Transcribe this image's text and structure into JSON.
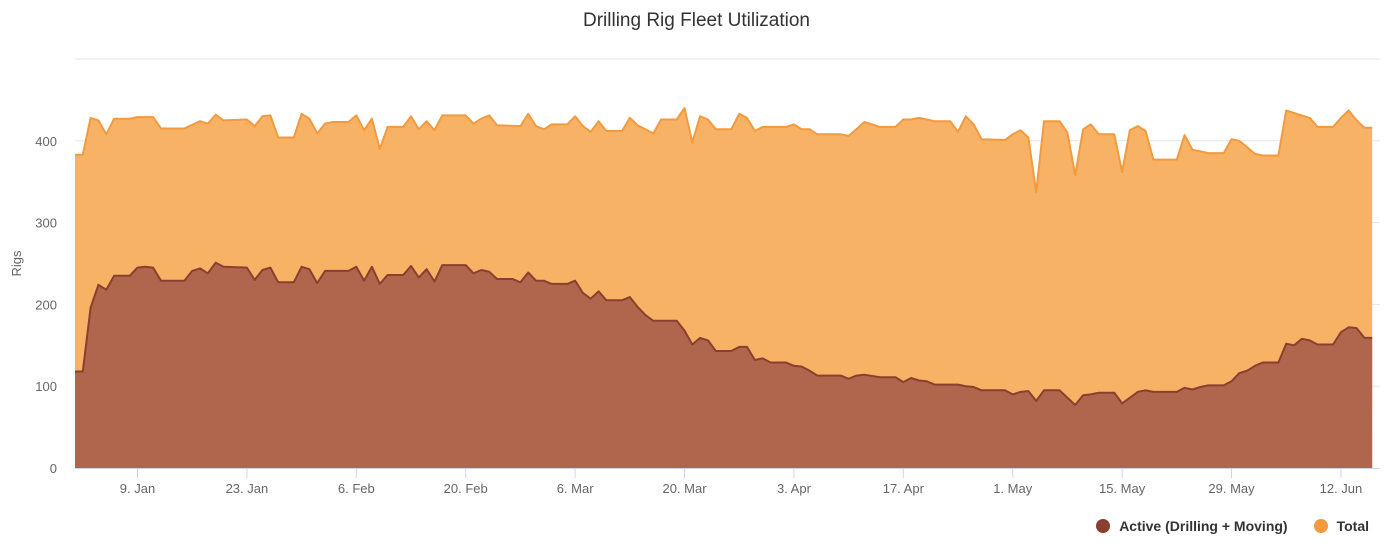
{
  "chart_data": {
    "type": "area",
    "title": "Drilling Rig Fleet Utilization",
    "ylabel": "Rigs",
    "xlabel": "",
    "ylim": [
      0,
      500
    ],
    "yticks": [
      0,
      100,
      200,
      300,
      400
    ],
    "x_start": "2017-01-02",
    "x_end": "2017-06-17",
    "xticks": [
      {
        "date": "2017-01-09",
        "label": "9. Jan"
      },
      {
        "date": "2017-01-23",
        "label": "23. Jan"
      },
      {
        "date": "2017-02-06",
        "label": "6. Feb"
      },
      {
        "date": "2017-02-20",
        "label": "20. Feb"
      },
      {
        "date": "2017-03-06",
        "label": "6. Mar"
      },
      {
        "date": "2017-03-20",
        "label": "20. Mar"
      },
      {
        "date": "2017-04-03",
        "label": "3. Apr"
      },
      {
        "date": "2017-04-17",
        "label": "17. Apr"
      },
      {
        "date": "2017-05-01",
        "label": "1. May"
      },
      {
        "date": "2017-05-15",
        "label": "15. May"
      },
      {
        "date": "2017-05-29",
        "label": "29. May"
      },
      {
        "date": "2017-06-12",
        "label": "12. Jun"
      }
    ],
    "grid": true,
    "legend_position": "bottom-right",
    "series": [
      {
        "name": "Total",
        "color": "#f29a3e",
        "fill": "#f7b266",
        "points": [
          [
            "2017-01-01",
            383
          ],
          [
            "2017-01-02",
            383
          ],
          [
            "2017-01-03",
            428
          ],
          [
            "2017-01-04",
            425
          ],
          [
            "2017-01-05",
            408
          ],
          [
            "2017-01-06",
            427
          ],
          [
            "2017-01-08",
            427
          ],
          [
            "2017-01-09",
            429
          ],
          [
            "2017-01-11",
            429
          ],
          [
            "2017-01-12",
            415
          ],
          [
            "2017-01-15",
            415
          ],
          [
            "2017-01-17",
            424
          ],
          [
            "2017-01-18",
            421
          ],
          [
            "2017-01-19",
            432
          ],
          [
            "2017-01-20",
            425
          ],
          [
            "2017-01-23",
            426
          ],
          [
            "2017-01-24",
            418
          ],
          [
            "2017-01-25",
            430
          ],
          [
            "2017-01-26",
            431
          ],
          [
            "2017-01-27",
            404
          ],
          [
            "2017-01-29",
            404
          ],
          [
            "2017-01-30",
            433
          ],
          [
            "2017-01-31",
            427
          ],
          [
            "2017-02-01",
            409
          ],
          [
            "2017-02-02",
            421
          ],
          [
            "2017-02-03",
            423
          ],
          [
            "2017-02-05",
            423
          ],
          [
            "2017-02-06",
            431
          ],
          [
            "2017-02-07",
            413
          ],
          [
            "2017-02-08",
            427
          ],
          [
            "2017-02-09",
            390
          ],
          [
            "2017-02-10",
            417
          ],
          [
            "2017-02-12",
            417
          ],
          [
            "2017-02-13",
            430
          ],
          [
            "2017-02-14",
            414
          ],
          [
            "2017-02-15",
            424
          ],
          [
            "2017-02-16",
            413
          ],
          [
            "2017-02-17",
            431
          ],
          [
            "2017-02-20",
            431
          ],
          [
            "2017-02-21",
            421
          ],
          [
            "2017-02-22",
            427
          ],
          [
            "2017-02-23",
            431
          ],
          [
            "2017-02-24",
            419
          ],
          [
            "2017-02-27",
            418
          ],
          [
            "2017-02-28",
            433
          ],
          [
            "2017-03-01",
            418
          ],
          [
            "2017-03-02",
            414
          ],
          [
            "2017-03-03",
            420
          ],
          [
            "2017-03-05",
            420
          ],
          [
            "2017-03-06",
            430
          ],
          [
            "2017-03-07",
            418
          ],
          [
            "2017-03-08",
            411
          ],
          [
            "2017-03-09",
            424
          ],
          [
            "2017-03-10",
            412
          ],
          [
            "2017-03-12",
            412
          ],
          [
            "2017-03-13",
            428
          ],
          [
            "2017-03-14",
            419
          ],
          [
            "2017-03-16",
            409
          ],
          [
            "2017-03-17",
            426
          ],
          [
            "2017-03-19",
            426
          ],
          [
            "2017-03-20",
            440
          ],
          [
            "2017-03-21",
            398
          ],
          [
            "2017-03-22",
            430
          ],
          [
            "2017-03-23",
            426
          ],
          [
            "2017-03-24",
            414
          ],
          [
            "2017-03-26",
            414
          ],
          [
            "2017-03-27",
            433
          ],
          [
            "2017-03-28",
            428
          ],
          [
            "2017-03-29",
            412
          ],
          [
            "2017-03-30",
            417
          ],
          [
            "2017-04-02",
            417
          ],
          [
            "2017-04-03",
            420
          ],
          [
            "2017-04-04",
            414
          ],
          [
            "2017-04-05",
            414
          ],
          [
            "2017-04-06",
            408
          ],
          [
            "2017-04-09",
            408
          ],
          [
            "2017-04-10",
            406
          ],
          [
            "2017-04-11",
            414
          ],
          [
            "2017-04-12",
            423
          ],
          [
            "2017-04-13",
            420
          ],
          [
            "2017-04-14",
            417
          ],
          [
            "2017-04-16",
            417
          ],
          [
            "2017-04-17",
            426
          ],
          [
            "2017-04-18",
            426
          ],
          [
            "2017-04-19",
            428
          ],
          [
            "2017-04-20",
            426
          ],
          [
            "2017-04-21",
            424
          ],
          [
            "2017-04-23",
            424
          ],
          [
            "2017-04-24",
            411
          ],
          [
            "2017-04-25",
            430
          ],
          [
            "2017-04-26",
            420
          ],
          [
            "2017-04-27",
            402
          ],
          [
            "2017-04-30",
            401
          ],
          [
            "2017-05-01",
            408
          ],
          [
            "2017-05-02",
            413
          ],
          [
            "2017-05-03",
            404
          ],
          [
            "2017-05-04",
            337
          ],
          [
            "2017-05-05",
            424
          ],
          [
            "2017-05-07",
            424
          ],
          [
            "2017-05-08",
            410
          ],
          [
            "2017-05-09",
            358
          ],
          [
            "2017-05-10",
            414
          ],
          [
            "2017-05-11",
            420
          ],
          [
            "2017-05-12",
            408
          ],
          [
            "2017-05-14",
            408
          ],
          [
            "2017-05-15",
            362
          ],
          [
            "2017-05-16",
            413
          ],
          [
            "2017-05-17",
            418
          ],
          [
            "2017-05-18",
            412
          ],
          [
            "2017-05-19",
            377
          ],
          [
            "2017-05-22",
            377
          ],
          [
            "2017-05-23",
            407
          ],
          [
            "2017-05-24",
            389
          ],
          [
            "2017-05-25",
            387
          ],
          [
            "2017-05-26",
            385
          ],
          [
            "2017-05-28",
            385
          ],
          [
            "2017-05-29",
            402
          ],
          [
            "2017-05-30",
            400
          ],
          [
            "2017-05-31",
            392
          ],
          [
            "2017-06-01",
            384
          ],
          [
            "2017-06-02",
            382
          ],
          [
            "2017-06-04",
            382
          ],
          [
            "2017-06-05",
            437
          ],
          [
            "2017-06-06",
            434
          ],
          [
            "2017-06-07",
            431
          ],
          [
            "2017-06-08",
            428
          ],
          [
            "2017-06-09",
            417
          ],
          [
            "2017-06-11",
            417
          ],
          [
            "2017-06-12",
            428
          ],
          [
            "2017-06-13",
            437
          ],
          [
            "2017-06-14",
            425
          ],
          [
            "2017-06-15",
            416
          ],
          [
            "2017-06-16",
            416
          ]
        ]
      },
      {
        "name": "Active (Drilling + Moving)",
        "color": "#8b3f2f",
        "fill": "#b0664d",
        "points": [
          [
            "2017-01-01",
            118
          ],
          [
            "2017-01-02",
            118
          ],
          [
            "2017-01-03",
            196
          ],
          [
            "2017-01-04",
            224
          ],
          [
            "2017-01-05",
            218
          ],
          [
            "2017-01-06",
            235
          ],
          [
            "2017-01-08",
            235
          ],
          [
            "2017-01-09",
            245
          ],
          [
            "2017-01-10",
            246
          ],
          [
            "2017-01-11",
            245
          ],
          [
            "2017-01-12",
            229
          ],
          [
            "2017-01-15",
            229
          ],
          [
            "2017-01-16",
            241
          ],
          [
            "2017-01-17",
            244
          ],
          [
            "2017-01-18",
            238
          ],
          [
            "2017-01-19",
            251
          ],
          [
            "2017-01-20",
            246
          ],
          [
            "2017-01-23",
            245
          ],
          [
            "2017-01-24",
            230
          ],
          [
            "2017-01-25",
            242
          ],
          [
            "2017-01-26",
            245
          ],
          [
            "2017-01-27",
            227
          ],
          [
            "2017-01-29",
            227
          ],
          [
            "2017-01-30",
            246
          ],
          [
            "2017-01-31",
            243
          ],
          [
            "2017-02-01",
            226
          ],
          [
            "2017-02-02",
            241
          ],
          [
            "2017-02-05",
            241
          ],
          [
            "2017-02-06",
            246
          ],
          [
            "2017-02-07",
            229
          ],
          [
            "2017-02-08",
            246
          ],
          [
            "2017-02-09",
            225
          ],
          [
            "2017-02-10",
            236
          ],
          [
            "2017-02-12",
            236
          ],
          [
            "2017-02-13",
            247
          ],
          [
            "2017-02-14",
            233
          ],
          [
            "2017-02-15",
            243
          ],
          [
            "2017-02-16",
            228
          ],
          [
            "2017-02-17",
            248
          ],
          [
            "2017-02-20",
            248
          ],
          [
            "2017-02-21",
            238
          ],
          [
            "2017-02-22",
            242
          ],
          [
            "2017-02-23",
            240
          ],
          [
            "2017-02-24",
            231
          ],
          [
            "2017-02-26",
            231
          ],
          [
            "2017-02-27",
            227
          ],
          [
            "2017-02-28",
            239
          ],
          [
            "2017-03-01",
            229
          ],
          [
            "2017-03-02",
            229
          ],
          [
            "2017-03-03",
            225
          ],
          [
            "2017-03-05",
            225
          ],
          [
            "2017-03-06",
            229
          ],
          [
            "2017-03-07",
            214
          ],
          [
            "2017-03-08",
            207
          ],
          [
            "2017-03-09",
            216
          ],
          [
            "2017-03-10",
            205
          ],
          [
            "2017-03-12",
            205
          ],
          [
            "2017-03-13",
            209
          ],
          [
            "2017-03-14",
            197
          ],
          [
            "2017-03-15",
            187
          ],
          [
            "2017-03-16",
            180
          ],
          [
            "2017-03-19",
            180
          ],
          [
            "2017-03-20",
            168
          ],
          [
            "2017-03-21",
            151
          ],
          [
            "2017-03-22",
            159
          ],
          [
            "2017-03-23",
            156
          ],
          [
            "2017-03-24",
            143
          ],
          [
            "2017-03-26",
            143
          ],
          [
            "2017-03-27",
            148
          ],
          [
            "2017-03-28",
            148
          ],
          [
            "2017-03-29",
            132
          ],
          [
            "2017-03-30",
            134
          ],
          [
            "2017-03-31",
            129
          ],
          [
            "2017-04-02",
            129
          ],
          [
            "2017-04-03",
            125
          ],
          [
            "2017-04-04",
            124
          ],
          [
            "2017-04-05",
            119
          ],
          [
            "2017-04-06",
            113
          ],
          [
            "2017-04-09",
            113
          ],
          [
            "2017-04-10",
            109
          ],
          [
            "2017-04-11",
            113
          ],
          [
            "2017-04-12",
            114
          ],
          [
            "2017-04-14",
            111
          ],
          [
            "2017-04-16",
            111
          ],
          [
            "2017-04-17",
            105
          ],
          [
            "2017-04-18",
            110
          ],
          [
            "2017-04-19",
            107
          ],
          [
            "2017-04-20",
            106
          ],
          [
            "2017-04-21",
            102
          ],
          [
            "2017-04-24",
            102
          ],
          [
            "2017-04-25",
            100
          ],
          [
            "2017-04-26",
            99
          ],
          [
            "2017-04-27",
            95
          ],
          [
            "2017-04-30",
            95
          ],
          [
            "2017-05-01",
            90
          ],
          [
            "2017-05-02",
            93
          ],
          [
            "2017-05-03",
            94
          ],
          [
            "2017-05-04",
            82
          ],
          [
            "2017-05-05",
            95
          ],
          [
            "2017-05-07",
            95
          ],
          [
            "2017-05-08",
            86
          ],
          [
            "2017-05-09",
            77
          ],
          [
            "2017-05-10",
            89
          ],
          [
            "2017-05-11",
            90
          ],
          [
            "2017-05-12",
            92
          ],
          [
            "2017-05-14",
            92
          ],
          [
            "2017-05-15",
            79
          ],
          [
            "2017-05-16",
            86
          ],
          [
            "2017-05-17",
            93
          ],
          [
            "2017-05-18",
            95
          ],
          [
            "2017-05-19",
            93
          ],
          [
            "2017-05-22",
            93
          ],
          [
            "2017-05-23",
            98
          ],
          [
            "2017-05-24",
            96
          ],
          [
            "2017-05-25",
            99
          ],
          [
            "2017-05-26",
            101
          ],
          [
            "2017-05-28",
            101
          ],
          [
            "2017-05-29",
            106
          ],
          [
            "2017-05-30",
            116
          ],
          [
            "2017-05-31",
            119
          ],
          [
            "2017-06-01",
            125
          ],
          [
            "2017-06-02",
            129
          ],
          [
            "2017-06-04",
            129
          ],
          [
            "2017-06-05",
            152
          ],
          [
            "2017-06-06",
            150
          ],
          [
            "2017-06-07",
            158
          ],
          [
            "2017-06-08",
            156
          ],
          [
            "2017-06-09",
            151
          ],
          [
            "2017-06-11",
            151
          ],
          [
            "2017-06-12",
            166
          ],
          [
            "2017-06-13",
            172
          ],
          [
            "2017-06-14",
            171
          ],
          [
            "2017-06-15",
            159
          ],
          [
            "2017-06-16",
            159
          ]
        ]
      }
    ]
  }
}
